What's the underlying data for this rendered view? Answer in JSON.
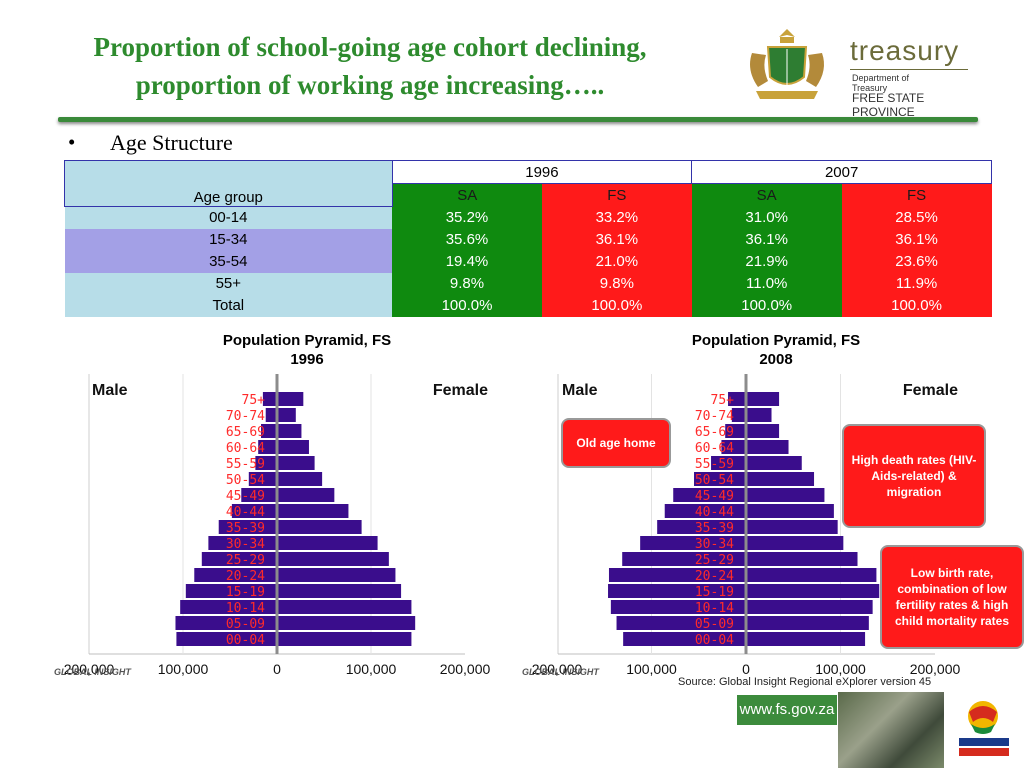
{
  "title_line1": "Proportion of school-going age cohort declining,",
  "title_line2": "proportion of working age increasing…..",
  "logo": {
    "name": "treasury",
    "dept_line1": "Department of",
    "dept_line2": "Treasury",
    "province": "FREE STATE PROVINCE"
  },
  "bullet": "•",
  "bullet_text": "Age Structure",
  "table": {
    "year_1996": "1996",
    "year_2007": "2007",
    "age_group_header": "Age group",
    "sa": "SA",
    "fs": "FS",
    "rows": [
      {
        "group": "00-14",
        "v": [
          "35.2%",
          "33.2%",
          "31.0%",
          "28.5%"
        ]
      },
      {
        "group": "15-34",
        "v": [
          "35.6%",
          "36.1%",
          "36.1%",
          "36.1%"
        ]
      },
      {
        "group": "35-54",
        "v": [
          "19.4%",
          "21.0%",
          "21.9%",
          "23.6%"
        ]
      },
      {
        "group": "55+",
        "v": [
          "9.8%",
          "9.8%",
          "11.0%",
          "11.9%"
        ]
      },
      {
        "group": "Total",
        "v": [
          "100.0%",
          "100.0%",
          "100.0%",
          "100.0%"
        ]
      }
    ]
  },
  "colors": {
    "bar": "#3a0d8c",
    "label": "#ff2a2a",
    "green": "#0f8a0f",
    "red": "#ff1a1a"
  },
  "chart_data": [
    {
      "type": "bar",
      "title": "Population Pyramid, FS",
      "subtitle": "1996",
      "left_label": "Male",
      "right_label": "Female",
      "categories": [
        "75+",
        "70-74",
        "65-69",
        "60-64",
        "55-59",
        "50-54",
        "45-49",
        "40-44",
        "35-39",
        "30-34",
        "25-29",
        "20-24",
        "15-19",
        "10-14",
        "05-09",
        "00-04"
      ],
      "series": [
        {
          "name": "Male",
          "values": [
            15000,
            12000,
            17000,
            20000,
            23000,
            30000,
            38000,
            48000,
            62000,
            73000,
            80000,
            88000,
            97000,
            103000,
            108000,
            107000
          ]
        },
        {
          "name": "Female",
          "values": [
            28000,
            20000,
            26000,
            34000,
            40000,
            48000,
            61000,
            76000,
            90000,
            107000,
            119000,
            126000,
            132000,
            143000,
            147000,
            143000
          ]
        }
      ],
      "xlim": [
        -200000,
        200000
      ],
      "tick_labels": [
        "200,000",
        "100,000",
        "0",
        "100,000",
        "200,000"
      ]
    },
    {
      "type": "bar",
      "title": "Population Pyramid, FS",
      "subtitle": "2008",
      "left_label": "Male",
      "right_label": "Female",
      "categories": [
        "75+",
        "70-74",
        "65-69",
        "60-64",
        "55-59",
        "50-54",
        "45-49",
        "40-44",
        "35-39",
        "30-34",
        "25-29",
        "20-24",
        "15-19",
        "10-14",
        "05-09",
        "00-04"
      ],
      "series": [
        {
          "name": "Male",
          "values": [
            19000,
            15000,
            22000,
            26000,
            37000,
            55000,
            77000,
            86000,
            94000,
            112000,
            131000,
            145000,
            146000,
            143000,
            137000,
            130000
          ]
        },
        {
          "name": "Female",
          "values": [
            35000,
            27000,
            35000,
            45000,
            59000,
            72000,
            83000,
            93000,
            97000,
            103000,
            118000,
            138000,
            141000,
            134000,
            130000,
            126000
          ]
        }
      ],
      "xlim": [
        -200000,
        200000
      ],
      "tick_labels": [
        "200,000",
        "100,000",
        "0",
        "100,000",
        "200,000"
      ]
    }
  ],
  "callouts": {
    "old_age": "Old age home",
    "high_death": "High death rates (HIV-Aids-related) & migration",
    "low_birth": "Low birth rate, combination of low fertility rates & high child mortality rates"
  },
  "foot_logo": "GLOBAL INSIGHT",
  "source": "Source: Global Insight Regional eXplorer version 45",
  "fsgov": "www.fs.gov.za"
}
